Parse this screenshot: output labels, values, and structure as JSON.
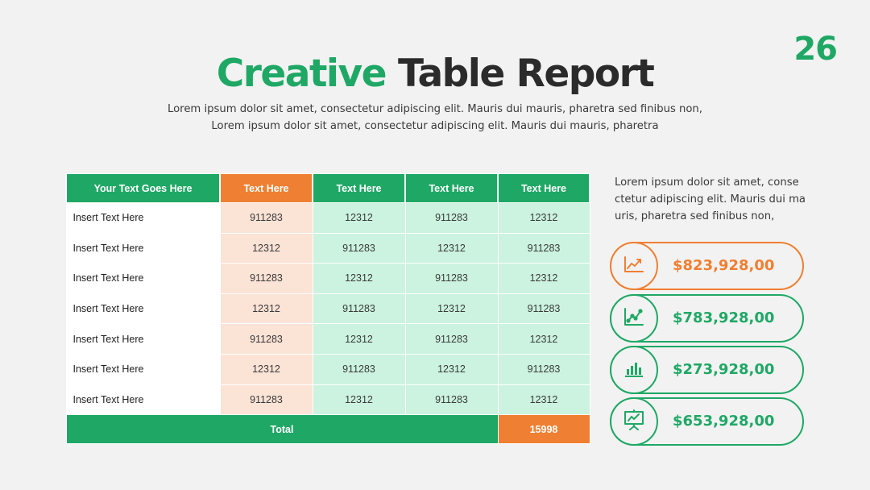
{
  "page_number": "26",
  "title": {
    "accent": "Creative",
    "rest": "Table Report"
  },
  "subtitle": {
    "line1": "Lorem ipsum dolor sit amet, consectetur adipiscing elit. Mauris dui mauris, pharetra sed finibus non,",
    "line2": "Lorem ipsum dolor sit amet, consectetur adipiscing elit. Mauris dui mauris, pharetra"
  },
  "table": {
    "headers": [
      "Your Text Goes Here",
      "Text Here",
      "Text Here",
      "Text Here",
      "Text Here"
    ],
    "rows": [
      {
        "label": "Insert Text Here",
        "values": [
          "911283",
          "12312",
          "911283",
          "12312"
        ]
      },
      {
        "label": "Insert Text Here",
        "values": [
          "12312",
          "911283",
          "12312",
          "911283"
        ]
      },
      {
        "label": "Insert Text Here",
        "values": [
          "911283",
          "12312",
          "911283",
          "12312"
        ]
      },
      {
        "label": "Insert Text Here",
        "values": [
          "12312",
          "911283",
          "12312",
          "911283"
        ]
      },
      {
        "label": "Insert Text Here",
        "values": [
          "911283",
          "12312",
          "911283",
          "12312"
        ]
      },
      {
        "label": "Insert Text Here",
        "values": [
          "12312",
          "911283",
          "12312",
          "911283"
        ]
      },
      {
        "label": "Insert Text Here",
        "values": [
          "911283",
          "12312",
          "911283",
          "12312"
        ]
      }
    ],
    "total_label": "Total",
    "total_value": "15998"
  },
  "side_text": {
    "line1": "Lorem ipsum dolor sit amet, conse",
    "line2": "ctetur adipiscing elit. Mauris dui ma",
    "line3": "uris, pharetra sed finibus non,"
  },
  "stats": [
    {
      "value": "$823,928,00",
      "icon": "line-chart-up-icon",
      "color": "#ef7f32"
    },
    {
      "value": "$783,928,00",
      "icon": "scatter-trend-icon",
      "color": "#1fa865"
    },
    {
      "value": "$273,928,00",
      "icon": "bar-chart-icon",
      "color": "#1fa865"
    },
    {
      "value": "$653,928,00",
      "icon": "presentation-board-icon",
      "color": "#1fa865"
    }
  ],
  "colors": {
    "green": "#1fa865",
    "orange": "#ef7f32",
    "light_green": "#cbf3df",
    "light_orange": "#fbe3d6",
    "background": "#f2f2f2"
  }
}
